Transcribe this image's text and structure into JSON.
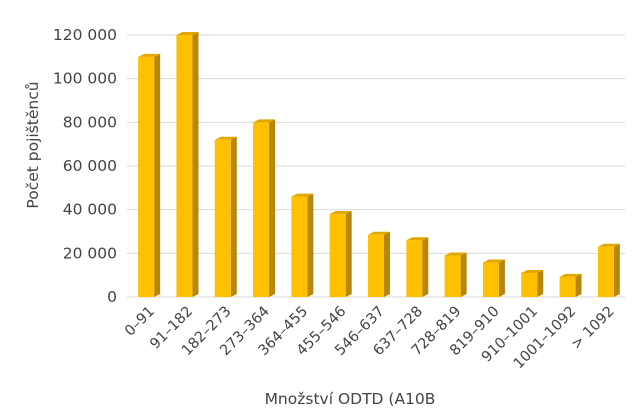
{
  "chart_data": {
    "type": "bar",
    "categories": [
      "0–91",
      "91–182",
      "182–273",
      "273–364",
      "364–455",
      "455–546",
      "546–637",
      "637–728",
      "728–819",
      "819–910",
      "910–1001",
      "1001–1092",
      "> 1092"
    ],
    "values": [
      110000,
      120000,
      72000,
      80000,
      46000,
      38000,
      28500,
      26000,
      19000,
      15800,
      11000,
      9200,
      23000
    ],
    "yticks": [
      0,
      20000,
      40000,
      60000,
      80000,
      100000,
      120000
    ],
    "ytick_labels": [
      "0",
      "20 000",
      "40 000",
      "60 000",
      "80 000",
      "100 000",
      "120 000"
    ],
    "ylim": [
      0,
      120000
    ],
    "xlabel": "Množství ODTD (A10B",
    "ylabel": "Počet pojištěnců",
    "grid": true,
    "bar_style": "3d",
    "colors": {
      "bar_front": "#FFC000",
      "bar_side": "#B8860B",
      "bar_top": "#E0A800",
      "grid": "#D9D9D9",
      "text": "#444444"
    }
  }
}
